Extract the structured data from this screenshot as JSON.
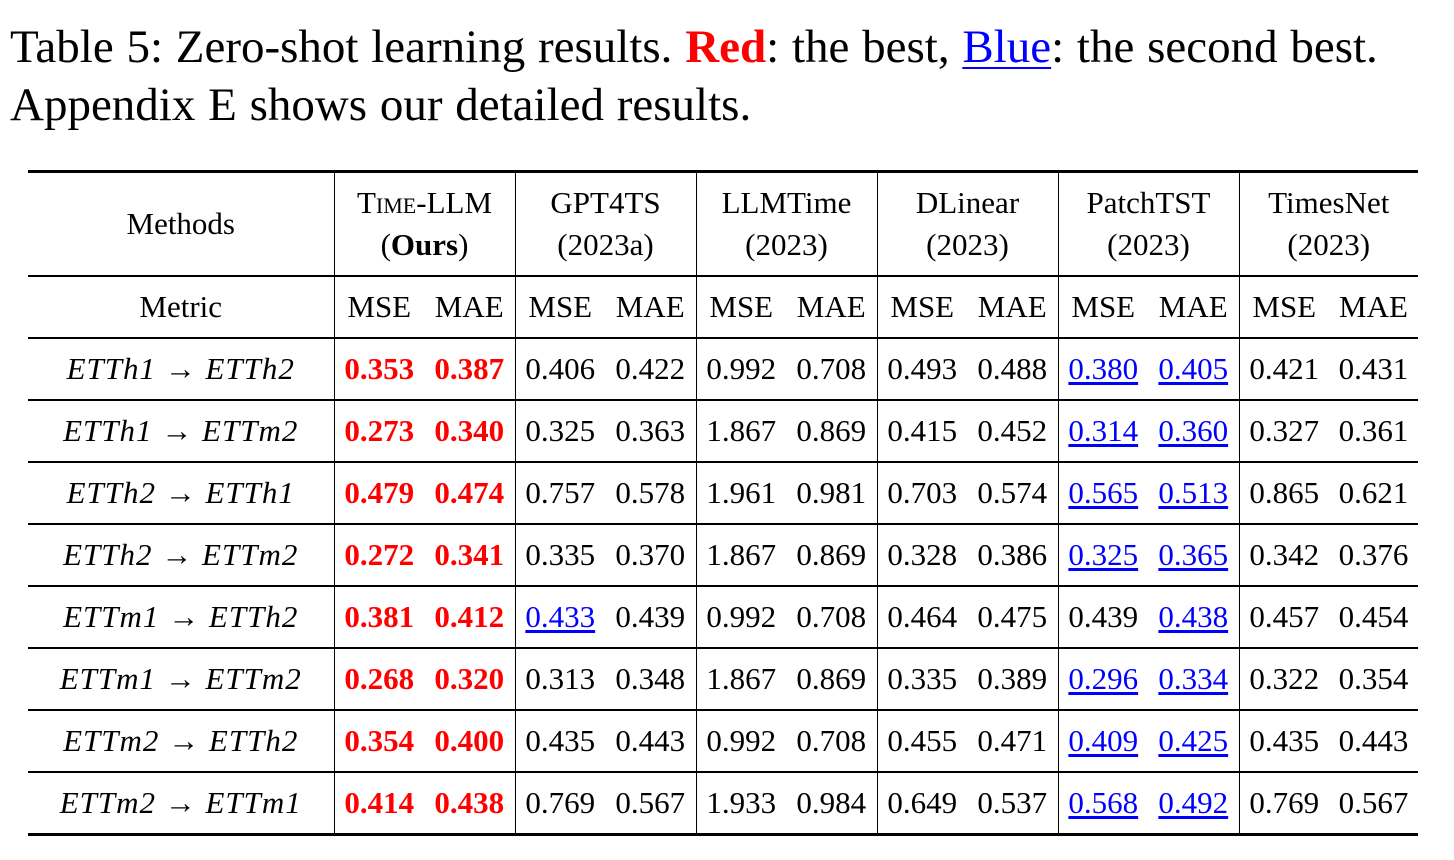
{
  "caption": {
    "prefix": "Table 5: Zero-shot learning results.",
    "red_label": "Red",
    "mid": ": the best,",
    "blue_label": "Blue",
    "suffix": ": the second best. Appendix E shows our detailed results."
  },
  "table": {
    "methods_label": "Methods",
    "metric_label": "Metric",
    "methods": [
      {
        "name": "Time-LLM",
        "sub_open": "(",
        "sub_bold": "Ours",
        "sub_close": ")"
      },
      {
        "name": "GPT4TS",
        "sub": "(2023a)"
      },
      {
        "name": "LLMTime",
        "sub": "(2023)"
      },
      {
        "name": "DLinear",
        "sub": "(2023)"
      },
      {
        "name": "PatchTST",
        "sub": "(2023)"
      },
      {
        "name": "TimesNet",
        "sub": "(2023)"
      }
    ],
    "metrics": [
      "MSE",
      "MAE"
    ],
    "rows": [
      {
        "label": "ETTh1 → ETTh2",
        "values": [
          "0.353",
          "0.387",
          "0.406",
          "0.422",
          "0.992",
          "0.708",
          "0.493",
          "0.488",
          "0.380",
          "0.405",
          "0.421",
          "0.431"
        ]
      },
      {
        "label": "ETTh1 → ETTm2",
        "values": [
          "0.273",
          "0.340",
          "0.325",
          "0.363",
          "1.867",
          "0.869",
          "0.415",
          "0.452",
          "0.314",
          "0.360",
          "0.327",
          "0.361"
        ]
      },
      {
        "label": "ETTh2 → ETTh1",
        "values": [
          "0.479",
          "0.474",
          "0.757",
          "0.578",
          "1.961",
          "0.981",
          "0.703",
          "0.574",
          "0.565",
          "0.513",
          "0.865",
          "0.621"
        ]
      },
      {
        "label": "ETTh2 → ETTm2",
        "values": [
          "0.272",
          "0.341",
          "0.335",
          "0.370",
          "1.867",
          "0.869",
          "0.328",
          "0.386",
          "0.325",
          "0.365",
          "0.342",
          "0.376"
        ]
      },
      {
        "label": "ETTm1 → ETTh2",
        "values": [
          "0.381",
          "0.412",
          "0.433",
          "0.439",
          "0.992",
          "0.708",
          "0.464",
          "0.475",
          "0.439",
          "0.438",
          "0.457",
          "0.454"
        ]
      },
      {
        "label": "ETTm1 → ETTm2",
        "values": [
          "0.268",
          "0.320",
          "0.313",
          "0.348",
          "1.867",
          "0.869",
          "0.335",
          "0.389",
          "0.296",
          "0.334",
          "0.322",
          "0.354"
        ]
      },
      {
        "label": "ETTm2 → ETTh2",
        "values": [
          "0.354",
          "0.400",
          "0.435",
          "0.443",
          "0.992",
          "0.708",
          "0.455",
          "0.471",
          "0.409",
          "0.425",
          "0.435",
          "0.443"
        ]
      },
      {
        "label": "ETTm2 → ETTm1",
        "values": [
          "0.414",
          "0.438",
          "0.769",
          "0.567",
          "1.933",
          "0.984",
          "0.649",
          "0.537",
          "0.568",
          "0.492",
          "0.769",
          "0.567"
        ]
      }
    ],
    "highlights": {
      "best": [
        [
          0,
          0
        ],
        [
          0,
          1
        ],
        [
          1,
          0
        ],
        [
          1,
          1
        ],
        [
          2,
          0
        ],
        [
          2,
          1
        ],
        [
          3,
          0
        ],
        [
          3,
          1
        ],
        [
          4,
          0
        ],
        [
          4,
          1
        ],
        [
          5,
          0
        ],
        [
          5,
          1
        ],
        [
          6,
          0
        ],
        [
          6,
          1
        ],
        [
          7,
          0
        ],
        [
          7,
          1
        ]
      ],
      "second": [
        [
          0,
          8
        ],
        [
          0,
          9
        ],
        [
          1,
          8
        ],
        [
          1,
          9
        ],
        [
          2,
          8
        ],
        [
          2,
          9
        ],
        [
          3,
          8
        ],
        [
          3,
          9
        ],
        [
          4,
          2
        ],
        [
          4,
          9
        ],
        [
          5,
          8
        ],
        [
          5,
          9
        ],
        [
          6,
          8
        ],
        [
          6,
          9
        ],
        [
          7,
          8
        ],
        [
          7,
          9
        ]
      ]
    },
    "colors": {
      "best": "#ff0000",
      "second": "#0000ff"
    }
  }
}
